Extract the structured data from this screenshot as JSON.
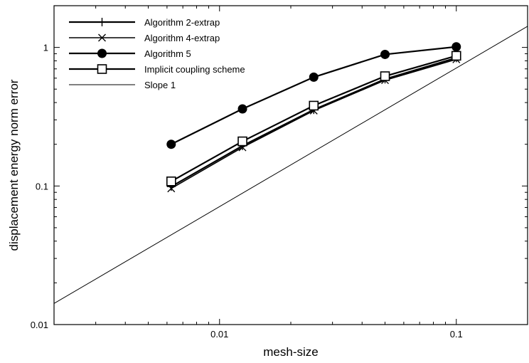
{
  "chart_data": {
    "type": "line",
    "title": "",
    "xlabel": "mesh-size",
    "ylabel": "displacement energy norm error",
    "xscale": "log",
    "yscale": "log",
    "xlim": [
      0.002,
      0.2
    ],
    "ylim": [
      0.01,
      2
    ],
    "grid": false,
    "legend_position": "top-left",
    "x_ticks": [
      0.01,
      0.1
    ],
    "x_tick_labels": [
      "0.01",
      "0.1"
    ],
    "y_ticks": [
      0.01,
      0.1,
      1
    ],
    "y_tick_labels": [
      "0.01",
      "0.1",
      "1"
    ],
    "series": [
      {
        "name": "Algorithm 2-extrap",
        "marker": "plus",
        "stroke_width": 2.2,
        "x": [
          0.00625,
          0.0125,
          0.025,
          0.05,
          0.1
        ],
        "y": [
          0.099,
          0.195,
          0.355,
          0.59,
          0.84
        ]
      },
      {
        "name": "Algorithm 4-extrap",
        "marker": "x",
        "stroke_width": 1.6,
        "x": [
          0.00625,
          0.0125,
          0.025,
          0.05,
          0.1
        ],
        "y": [
          0.096,
          0.19,
          0.35,
          0.58,
          0.82
        ]
      },
      {
        "name": "Algorithm 5",
        "marker": "filled-circle",
        "stroke_width": 2.2,
        "x": [
          0.00625,
          0.0125,
          0.025,
          0.05,
          0.1
        ],
        "y": [
          0.2,
          0.36,
          0.61,
          0.89,
          1.01
        ]
      },
      {
        "name": "Implicit coupling scheme",
        "marker": "open-square",
        "stroke_width": 2.2,
        "x": [
          0.00625,
          0.0125,
          0.025,
          0.05,
          0.1
        ],
        "y": [
          0.108,
          0.21,
          0.38,
          0.62,
          0.87
        ]
      },
      {
        "name": "Slope 1",
        "marker": "none",
        "stroke_width": 1,
        "x": [
          0.002,
          0.2
        ],
        "y": [
          0.0142,
          1.42
        ]
      }
    ]
  }
}
